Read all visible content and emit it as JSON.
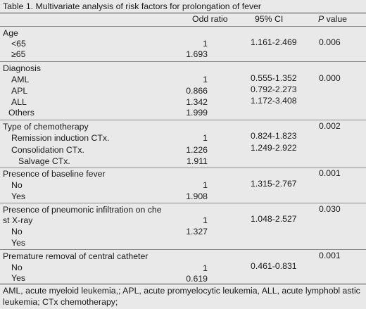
{
  "title": "Table 1. Multivariate analysis of risk factors for prolongation of fever",
  "headers": {
    "odd": "Odd ratio",
    "ci": "95% CI",
    "p_italic": "P",
    "p_rest": " value"
  },
  "rows": [
    {
      "label": "Age",
      "odd": "",
      "ci": "",
      "p": ""
    },
    {
      "label": "<65",
      "odd": "1",
      "ci": "1.161-2.469",
      "p": "0.006"
    },
    {
      "label": "≥65",
      "odd": "1.693",
      "ci": "",
      "p": ""
    },
    {
      "label": "Diagnosis",
      "odd": "",
      "ci": "",
      "p": ""
    },
    {
      "label": "AML",
      "odd": "1",
      "ci": "0.555-1.352",
      "p": "0.000"
    },
    {
      "label": "APL",
      "odd": "0.866",
      "ci": "0.792-2.273",
      "p": ""
    },
    {
      "label": "ALL",
      "odd": "1.342",
      "ci": "1.172-3.408",
      "p": ""
    },
    {
      "label": "Others",
      "odd": "1.999",
      "ci": "",
      "p": ""
    },
    {
      "label": "Type of chemotherapy",
      "odd": "",
      "ci": "",
      "p": "0.002"
    },
    {
      "label": "Remission induction CTx.",
      "odd": "1",
      "ci": "0.824-1.823",
      "p": ""
    },
    {
      "label": "Consolidation CTx.",
      "odd": "1.226",
      "ci": "1.249-2.922",
      "p": ""
    },
    {
      "label": "Salvage CTx.",
      "odd": "1.911",
      "ci": "",
      "p": ""
    },
    {
      "label": "Presence of baseline fever",
      "odd": "",
      "ci": "",
      "p": "0.001"
    },
    {
      "label": "No",
      "odd": "1",
      "ci": "1.315-2.767",
      "p": ""
    },
    {
      "label": "Yes",
      "odd": "1.908",
      "ci": "",
      "p": ""
    },
    {
      "label": "Presence of pneumonic infiltration on che",
      "label2": "st X-ray",
      "odd": "1",
      "ci": "1.048-2.527",
      "p": "0.030"
    },
    {
      "label": "No",
      "odd": "1.327",
      "ci": "",
      "p": ""
    },
    {
      "label": "Yes",
      "odd": "",
      "ci": "",
      "p": ""
    },
    {
      "label": "Premature removal of central catheter",
      "odd": "",
      "ci": "",
      "p": "0.001"
    },
    {
      "label": "No",
      "odd": "1",
      "ci": "0.461-0.831",
      "p": ""
    },
    {
      "label": "Yes",
      "odd": "0.619",
      "ci": "",
      "p": ""
    }
  ],
  "footnote": "AML, acute myeloid leukemia,; APL, acute promyelocytic leukemia, ALL, acute lymphobl astic leukemia; CTx chemotherapy;"
}
